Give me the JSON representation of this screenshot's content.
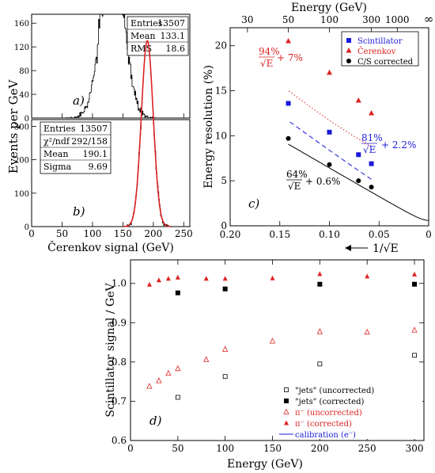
{
  "chart_data": [
    {
      "panel": "a)",
      "type": "histogram",
      "xlim": [
        0,
        260
      ],
      "ylim": [
        0,
        175
      ],
      "yticks": [
        0,
        40,
        80,
        120,
        160
      ],
      "xticks": [
        0,
        50,
        100,
        150,
        200,
        250
      ],
      "distribution": {
        "mean": 133.1,
        "rms": 18.6,
        "entries": 13507
      },
      "stats": [
        {
          "label": "Entries",
          "value": "13507"
        },
        {
          "label": "Mean",
          "value": "133.1"
        },
        {
          "label": "RMS",
          "value": "18.6"
        }
      ]
    },
    {
      "panel": "b)",
      "type": "histogram",
      "xlim": [
        0,
        260
      ],
      "ylim": [
        0,
        320
      ],
      "yticks": [
        0,
        100,
        200,
        300
      ],
      "xticks": [
        0,
        50,
        100,
        150,
        200,
        250
      ],
      "xticklabels": [
        "0",
        "50",
        "100",
        "150",
        "200",
        "250"
      ],
      "distribution": {
        "mean": 190.1,
        "sigma": 9.69,
        "entries": 13507
      },
      "fit": {
        "type": "gaussian",
        "color": "#dd2222",
        "mean": 190.1,
        "sigma": 9.69
      },
      "stats": [
        {
          "label": "Entries",
          "value": "13507"
        },
        {
          "label": "χ²/ndf",
          "value": "292/158"
        },
        {
          "label": "Mean",
          "value": "190.1"
        },
        {
          "label": "Sigma",
          "value": "9.69"
        }
      ]
    },
    {
      "panel": "c)",
      "type": "scatter",
      "xlim": [
        0.2,
        0
      ],
      "ylim": [
        0,
        22
      ],
      "xticks": [
        "0.20",
        "0.15",
        "0.10",
        "0.05",
        "0"
      ],
      "yticks": [
        0,
        5,
        10,
        15,
        20
      ],
      "top_axis": {
        "label": "Energy (GeV)",
        "ticks": [
          "30",
          "50",
          "100",
          "300",
          "1000",
          "∞"
        ],
        "energies": [
          30,
          50,
          100,
          300,
          1000,
          null
        ]
      },
      "ylabel": "Energy resolution (%)",
      "xlabel": "1/√E",
      "series": [
        {
          "name": "Scintillator",
          "color": "#1a1adb",
          "marker": "square",
          "line": "dashed",
          "x": [
            0.1414,
            0.1,
            0.0707,
            0.0577
          ],
          "y": [
            13.6,
            10.4,
            7.9,
            6.9
          ],
          "fit": {
            "stochastic": 81,
            "constant": 2.2
          },
          "formula_parts": [
            "81%",
            "√E",
            "+ 2.2%"
          ]
        },
        {
          "name": "Čerenkov",
          "color": "#dd2222",
          "marker": "triangle",
          "line": "dotted",
          "x": [
            0.1414,
            0.1,
            0.0707,
            0.0577
          ],
          "y": [
            20.5,
            17.0,
            13.9,
            12.5
          ],
          "fit": {
            "stochastic": 94,
            "constant": 7
          },
          "formula_parts": [
            "94%",
            "√E",
            "+ 7%"
          ]
        },
        {
          "name": "C/S corrected",
          "color": "#000000",
          "marker": "circle",
          "line": "solid",
          "x": [
            0.1414,
            0.1,
            0.0707,
            0.0577
          ],
          "y": [
            9.7,
            6.8,
            5.0,
            4.3
          ],
          "fit": {
            "stochastic": 64,
            "constant": 0.6
          },
          "formula_parts": [
            "64%",
            "√E",
            "+ 0.6%"
          ]
        }
      ]
    },
    {
      "panel": "d)",
      "type": "scatter",
      "xlim": [
        0,
        310
      ],
      "ylim": [
        0.6,
        1.06
      ],
      "xticks": [
        0,
        50,
        100,
        150,
        200,
        250,
        300
      ],
      "yticks": [
        "0.6",
        "0.7",
        "0.8",
        "0.9",
        "1.0"
      ],
      "xlabel": "Energy (GeV)",
      "ylabel": "Scintillator signal / GeV",
      "series": [
        {
          "name": "\"jets\" (uncorrected)",
          "color": "#000000",
          "marker": "open-square",
          "x": [
            50,
            100,
            200,
            300
          ],
          "y": [
            0.71,
            0.763,
            0.795,
            0.817
          ]
        },
        {
          "name": "\"jets\" (corrected)",
          "color": "#000000",
          "marker": "filled-square",
          "x": [
            50,
            100,
            200,
            300
          ],
          "y": [
            0.976,
            0.986,
            0.998,
            0.998
          ]
        },
        {
          "name": "π⁻ (uncorrected)",
          "color": "#dd2222",
          "marker": "open-triangle",
          "x": [
            20,
            30,
            40,
            50,
            80,
            100,
            150,
            200,
            250,
            300
          ],
          "y": [
            0.738,
            0.752,
            0.771,
            0.783,
            0.806,
            0.832,
            0.853,
            0.877,
            0.876,
            0.881
          ]
        },
        {
          "name": "π⁻ (corrected)",
          "color": "#dd2222",
          "marker": "filled-triangle",
          "x": [
            20,
            30,
            40,
            50,
            80,
            100,
            150,
            200,
            250,
            300
          ],
          "y": [
            0.997,
            1.008,
            1.012,
            1.015,
            1.012,
            1.012,
            1.013,
            1.024,
            1.018,
            1.023
          ]
        },
        {
          "name": "calibration (e⁻)",
          "color": "#1a1adb",
          "marker": "line",
          "y_constant": 1.0
        }
      ]
    }
  ],
  "shared": {
    "ylabel_ab": "Events per GeV",
    "xlabel_ab": "Čerenkov signal (GeV)"
  }
}
